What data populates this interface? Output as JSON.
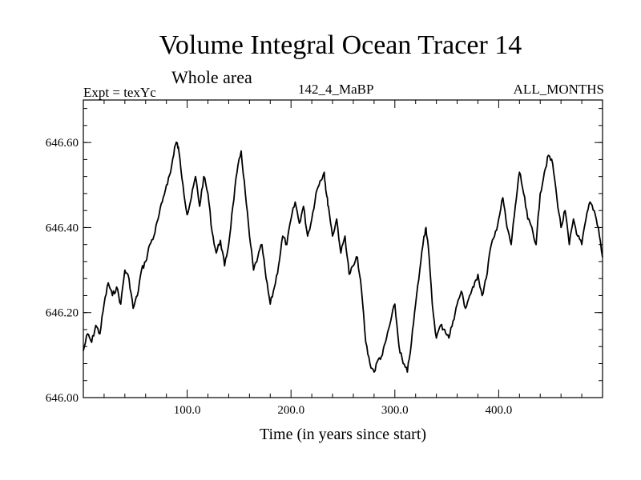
{
  "header": {
    "title": "Volume Integral Ocean Tracer 14",
    "subtitle": "Whole area",
    "experiment": "Expt = texYc",
    "run_id": "142_4_MaBP",
    "months": "ALL_MONTHS"
  },
  "chart_data": {
    "type": "line",
    "title": "Volume Integral Ocean Tracer 14",
    "subtitle": "Whole area",
    "xlabel": "Time (in years since start)",
    "ylabel": "",
    "xlim": [
      0,
      500
    ],
    "ylim": [
      646.0,
      646.7
    ],
    "xticks": [
      100,
      200,
      300,
      400
    ],
    "xtick_labels": [
      "100.0",
      "200.0",
      "300.0",
      "400.0"
    ],
    "yticks": [
      646.0,
      646.2,
      646.4,
      646.6
    ],
    "ytick_labels": [
      "646.00",
      "646.20",
      "646.40",
      "646.60"
    ],
    "grid": false,
    "series": [
      {
        "x": [
          0,
          4,
          8,
          12,
          16,
          20,
          24,
          28,
          32,
          36,
          40,
          44,
          48,
          52,
          56,
          60,
          64,
          68,
          72,
          76,
          80,
          84,
          88,
          90,
          92,
          96,
          100,
          104,
          108,
          112,
          116,
          120,
          124,
          128,
          132,
          136,
          140,
          144,
          148,
          152,
          156,
          160,
          164,
          168,
          172,
          176,
          180,
          184,
          188,
          192,
          196,
          200,
          204,
          208,
          212,
          216,
          220,
          224,
          228,
          232,
          234,
          236,
          240,
          244,
          248,
          252,
          256,
          260,
          264,
          268,
          272,
          276,
          280,
          284,
          288,
          292,
          296,
          300,
          304,
          308,
          312,
          316,
          320,
          324,
          328,
          330,
          332,
          336,
          340,
          344,
          348,
          352,
          356,
          360,
          364,
          368,
          372,
          376,
          380,
          384,
          388,
          392,
          396,
          400,
          404,
          408,
          412,
          416,
          420,
          424,
          428,
          432,
          436,
          440,
          444,
          448,
          452,
          456,
          460,
          464,
          468,
          472,
          476,
          480,
          484,
          488,
          492,
          496,
          500
        ],
        "y": [
          646.11,
          646.15,
          646.13,
          646.17,
          646.15,
          646.22,
          646.27,
          646.24,
          646.26,
          646.22,
          646.3,
          646.28,
          646.21,
          646.24,
          646.3,
          646.32,
          646.36,
          646.38,
          646.42,
          646.46,
          646.5,
          646.53,
          646.59,
          646.6,
          646.58,
          646.5,
          646.43,
          646.47,
          646.52,
          646.45,
          646.52,
          646.48,
          646.39,
          646.34,
          646.37,
          646.31,
          646.36,
          646.45,
          646.53,
          646.58,
          646.48,
          646.38,
          646.3,
          646.33,
          646.36,
          646.28,
          646.22,
          646.26,
          646.31,
          646.38,
          646.36,
          646.42,
          646.46,
          646.41,
          646.45,
          646.38,
          646.42,
          646.48,
          646.51,
          646.53,
          646.48,
          646.45,
          646.38,
          646.42,
          646.34,
          646.38,
          646.29,
          646.31,
          646.33,
          646.25,
          646.13,
          646.08,
          646.06,
          646.09,
          646.1,
          646.14,
          646.18,
          646.22,
          646.12,
          646.08,
          646.06,
          646.13,
          646.22,
          646.3,
          646.38,
          646.4,
          646.36,
          646.22,
          646.14,
          646.17,
          646.16,
          646.14,
          646.18,
          646.22,
          646.25,
          646.21,
          646.24,
          646.26,
          646.29,
          646.24,
          646.28,
          646.35,
          646.38,
          646.42,
          646.47,
          646.4,
          646.36,
          646.45,
          646.53,
          646.48,
          646.42,
          646.4,
          646.36,
          646.48,
          646.53,
          646.57,
          646.55,
          646.47,
          646.4,
          646.44,
          646.36,
          646.42,
          646.38,
          646.36,
          646.42,
          646.46,
          646.44,
          646.4,
          646.33
        ]
      }
    ]
  },
  "axes": {
    "xlabel": "Time (in years since start)"
  }
}
